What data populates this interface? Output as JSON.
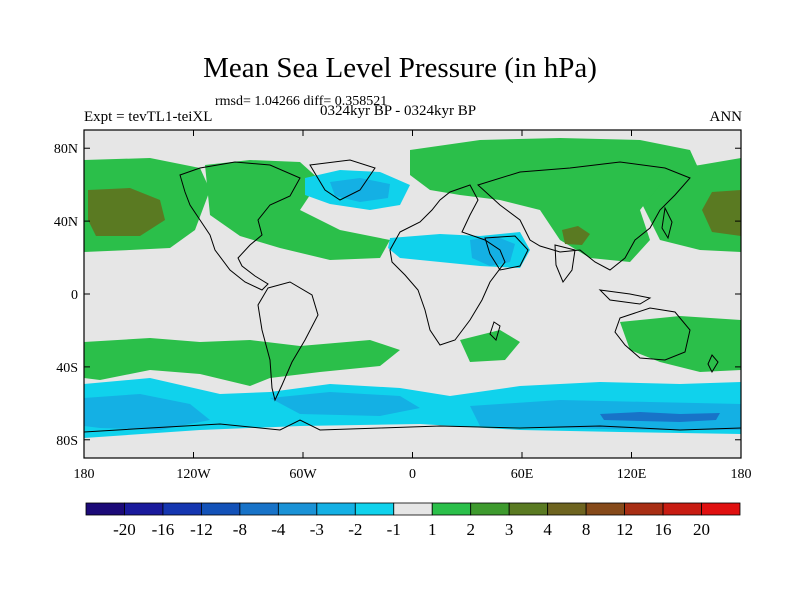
{
  "title": "Mean Sea Level Pressure (in hPa)",
  "stats": "rmsd= 1.04266 diff= 0.358521",
  "experiment": "Expt = tevTL1-teiXL",
  "period": "0324kyr BP - 0324kyr BP",
  "season": "ANN",
  "lat_ticks": [
    "80N",
    "40N",
    "0",
    "40S",
    "80S"
  ],
  "lat_values": [
    80,
    40,
    0,
    -40,
    -80
  ],
  "lon_ticks": [
    "180",
    "120W",
    "60W",
    "0",
    "60E",
    "120E",
    "180"
  ],
  "lon_values": [
    -180,
    -120,
    -60,
    0,
    60,
    120,
    180
  ],
  "map_extent": {
    "lon": [
      -180,
      180
    ],
    "lat": [
      -90,
      90
    ]
  },
  "colorbar": {
    "labels": [
      "-20",
      "-16",
      "-12",
      "-8",
      "-4",
      "-3",
      "-2",
      "-1",
      "1",
      "2",
      "3",
      "4",
      "8",
      "12",
      "16",
      "20"
    ],
    "colors": [
      "#1c0a78",
      "#1a1a9c",
      "#1536b0",
      "#1352b8",
      "#1873c8",
      "#1a92d6",
      "#14b0e4",
      "#10d2ec",
      "#e6e6e6",
      "#2bbf4a",
      "#3e9a2e",
      "#5a7a22",
      "#6e6420",
      "#864a1a",
      "#a82e14",
      "#c81c12",
      "#e01010"
    ]
  },
  "fields": {
    "neutral_color": "#e6e6e6",
    "zones": [
      {
        "name": "north-pacific-high",
        "color": "#2bbf4a"
      },
      {
        "name": "north-pacific-core",
        "color": "#5a7a22"
      },
      {
        "name": "north-atlantic-high",
        "color": "#2bbf4a"
      },
      {
        "name": "eurasia-high",
        "color": "#2bbf4a"
      },
      {
        "name": "tibet-core",
        "color": "#5a7a22"
      },
      {
        "name": "greenland-low",
        "color": "#10d2ec"
      },
      {
        "name": "greenland-low-core",
        "color": "#14b0e4"
      },
      {
        "name": "sahara-low",
        "color": "#10d2ec"
      },
      {
        "name": "arabia-low-core",
        "color": "#14b0e4"
      },
      {
        "name": "southern-midlat-high",
        "color": "#2bbf4a"
      },
      {
        "name": "southern-ocean-low",
        "color": "#10d2ec"
      },
      {
        "name": "southern-ocean-low-core",
        "color": "#14b0e4"
      },
      {
        "name": "antarctic-deep-low",
        "color": "#1873c8"
      }
    ]
  }
}
